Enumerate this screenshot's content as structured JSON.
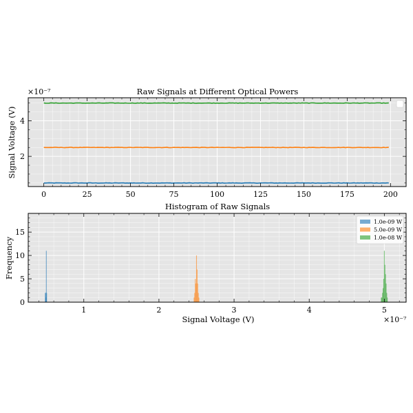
{
  "chart_data": [
    {
      "type": "line",
      "title": "Raw Signals at Different Optical Powers",
      "xlabel": "",
      "ylabel": "Signal Voltage (V)",
      "y_offset_label": "×10⁻⁷",
      "xlim": [
        -9,
        209
      ],
      "ylim": [
        0.3,
        5.3
      ],
      "xticks": [
        0,
        25,
        50,
        75,
        100,
        125,
        150,
        175,
        200
      ],
      "xtick_labels": [
        "0",
        "25",
        "50",
        "75",
        "100",
        "125",
        "150",
        "175",
        "200"
      ],
      "yticks": [
        2,
        4
      ],
      "ytick_labels": [
        "2",
        "4"
      ],
      "grid": true,
      "legend": "top-right",
      "series": [
        {
          "color": "#1f77b4",
          "level": 0.5,
          "noise": 0.012,
          "n": 200
        },
        {
          "color": "#ff7f0e",
          "level": 2.5,
          "noise": 0.012,
          "n": 200
        },
        {
          "color": "#2ca02c",
          "level": 5.0,
          "noise": 0.012,
          "n": 200
        }
      ]
    },
    {
      "type": "bar",
      "title": "Histogram of Raw Signals",
      "xlabel": "Signal Voltage (V)",
      "ylabel": "Frequency",
      "x_offset_label": "×10⁻⁷",
      "xlim": [
        0.26,
        5.29
      ],
      "ylim": [
        0,
        19
      ],
      "xticks": [
        1,
        2,
        3,
        4,
        5
      ],
      "xtick_labels": [
        "1",
        "2",
        "3",
        "4",
        "5"
      ],
      "yticks": [
        0,
        5,
        10,
        15
      ],
      "ytick_labels": [
        "0",
        "5",
        "10",
        "15"
      ],
      "grid": true,
      "legend": "top-right",
      "series": [
        {
          "name": "1.0e-09 W",
          "color": "#1f77b4",
          "bins": [
            {
              "x": 0.488,
              "count": 2
            },
            {
              "x": 0.492,
              "count": 2
            },
            {
              "x": 0.497,
              "count": 1
            },
            {
              "x": 0.501,
              "count": 11
            },
            {
              "x": 0.505,
              "count": 2
            }
          ]
        },
        {
          "name": "5.0e-09 W",
          "color": "#ff7f0e",
          "bins": [
            {
              "x": 2.468,
              "count": 1
            },
            {
              "x": 2.476,
              "count": 2
            },
            {
              "x": 2.484,
              "count": 5
            },
            {
              "x": 2.492,
              "count": 4
            },
            {
              "x": 2.5,
              "count": 10
            },
            {
              "x": 2.508,
              "count": 7
            },
            {
              "x": 2.516,
              "count": 4
            },
            {
              "x": 2.524,
              "count": 2
            },
            {
              "x": 2.532,
              "count": 1
            }
          ]
        },
        {
          "name": "1.0e-08 W",
          "color": "#2ca02c",
          "bins": [
            {
              "x": 4.96,
              "count": 1
            },
            {
              "x": 4.968,
              "count": 1
            },
            {
              "x": 4.976,
              "count": 2
            },
            {
              "x": 4.984,
              "count": 3
            },
            {
              "x": 4.992,
              "count": 5
            },
            {
              "x": 5.0,
              "count": 11
            },
            {
              "x": 5.008,
              "count": 8
            },
            {
              "x": 5.016,
              "count": 6
            },
            {
              "x": 5.024,
              "count": 4
            },
            {
              "x": 5.032,
              "count": 2
            },
            {
              "x": 5.04,
              "count": 1
            }
          ]
        }
      ]
    }
  ]
}
